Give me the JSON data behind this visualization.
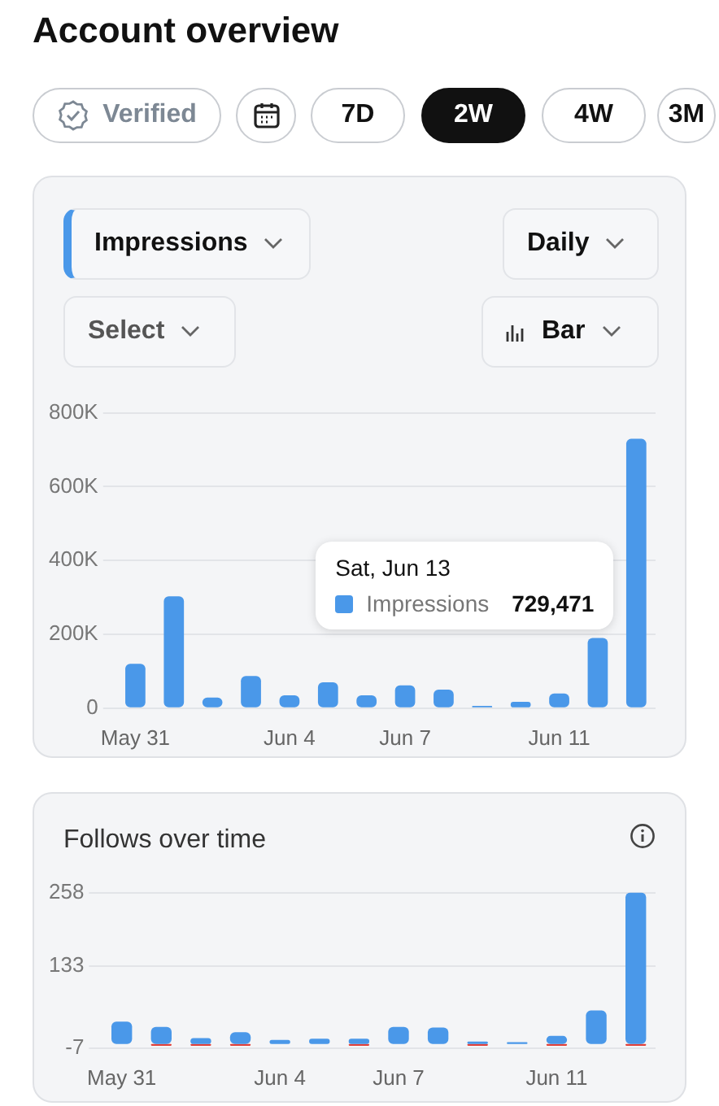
{
  "chart_data": [
    {
      "type": "bar",
      "title": "Account overview",
      "annotations": [
        "Verified",
        "7D",
        "2W",
        "4W",
        "3M",
        "Impressions",
        "Daily",
        "Select",
        "Bar",
        "Sat, Jun 13",
        "729,471"
      ],
      "categories": [
        "May 31",
        null,
        null,
        null,
        "Jun 4",
        null,
        null,
        "Jun 7",
        null,
        null,
        null,
        "Jun 11",
        null,
        null
      ],
      "series": [
        {
          "name": "Impressions",
          "color": "#4a98e9",
          "values": [
            120000,
            303000,
            29000,
            87000,
            35000,
            70000,
            35000,
            62000,
            50000,
            6000,
            17000,
            40000,
            190000,
            729471
          ]
        }
      ],
      "ylim": [
        0,
        800000
      ],
      "yticks": [
        0,
        {
          "value": 200000,
          "label": "200K"
        },
        {
          "value": 400000,
          "label": "400K"
        },
        {
          "value": 600000,
          "label": "600K"
        },
        {
          "value": 800000,
          "label": "800K"
        }
      ],
      "grid": "y",
      "legend": "right"
    },
    {
      "type": "bar",
      "title": "Follows over time",
      "stacked": true,
      "categories": [
        "May 31",
        null,
        null,
        null,
        "Jun 4",
        null,
        null,
        "Jun 7",
        null,
        null,
        null,
        "Jun 11",
        null,
        null
      ],
      "series": [
        {
          "color": "#4a98e9",
          "values": [
            38,
            29,
            10,
            20,
            7,
            9,
            9,
            29,
            28,
            4,
            3,
            14,
            57,
            258
          ]
        },
        {
          "color": "#e0403a",
          "values": [
            0,
            -3,
            -3,
            -3,
            0,
            0,
            -3,
            null,
            null,
            -3,
            0,
            -3,
            0,
            -3
          ]
        }
      ],
      "ylim": [
        -7,
        258
      ],
      "yticks": [
        -7,
        133,
        258
      ],
      "grid": "y",
      "legend": false
    }
  ]
}
